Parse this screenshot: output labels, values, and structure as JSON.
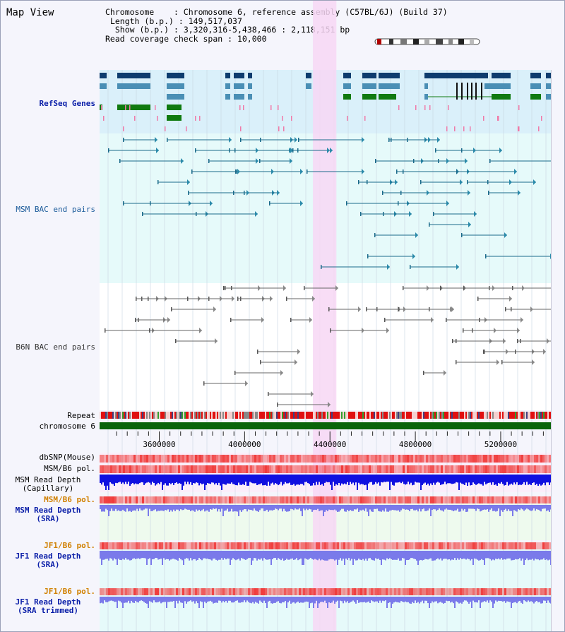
{
  "window_title": "Map View",
  "info": {
    "chromosome_label": "Chromosome",
    "chromosome_value": "Chromosome 6, reference assembly (C57BL/6J) (Build 37)",
    "length_label": "Length (b.p.)",
    "length_value": "149,517,037",
    "show_label": "Show (b.p.)",
    "show_value": "3,320,316-5,438,466 : 2,118,151 bp",
    "coverage_label": "Read coverage check span",
    "coverage_value": "10,000"
  },
  "tracks": {
    "refseq": "RefSeq Genes",
    "msm_bac": "MSM BAC end pairs",
    "b6n_bac": "B6N BAC end pairs",
    "repeat": "Repeat",
    "chromosome": "chromosome 6",
    "dbsnp": "dbSNP(Mouse)",
    "msm_b6_pol": "MSM/B6 pol.",
    "msm_read_depth_cap_1": "MSM Read Depth",
    "msm_read_depth_cap_2": "(Capillary)",
    "msm_b6_pol_2": "MSM/B6 pol.",
    "msm_read_depth_sra_1": "MSM Read Depth",
    "msm_read_depth_sra_2": "(SRA)",
    "jf1_b6_pol": "JF1/B6 pol.",
    "jf1_read_depth_sra_1": "JF1 Read Depth",
    "jf1_read_depth_sra_2": "(SRA)",
    "jf1_b6_pol_2": "JF1/B6 pol.",
    "jf1_read_depth_trim_1": "JF1 Read Depth",
    "jf1_read_depth_trim_2": "(SRA trimmed)"
  },
  "axis": {
    "ticks": [
      "3600000",
      "4000000",
      "4400000",
      "4800000",
      "5200000"
    ],
    "tick_values": [
      3600000,
      4000000,
      4400000,
      4800000,
      5200000
    ],
    "range_start": 3320316,
    "range_end": 5438466,
    "highlight_start": 4320000,
    "highlight_end": 4430000
  },
  "colors": {
    "refseq_bg": "#daf0fa",
    "msm_bg": "#e6fafa",
    "b6n_bg": "#ffffff",
    "highlight": "#f7d7f4",
    "gene_navy": "#0e3c6e",
    "gene_steel": "#4a8fb5",
    "gene_green": "#107a10",
    "chromosome_bar": "#0a640a",
    "depth_dark": "#1010e0",
    "depth_light": "#7a7aea",
    "pol_red": "#f04040"
  }
}
